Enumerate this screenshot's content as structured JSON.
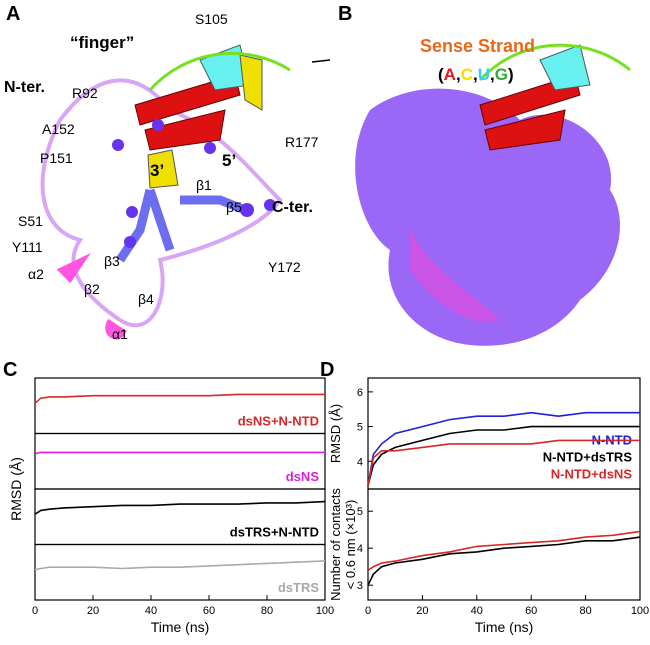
{
  "panels": {
    "A": {
      "label": "A",
      "annotations": [
        "“finger”",
        "S105",
        "N-ter.",
        "R92",
        "A152",
        "P151",
        "3’",
        "5’",
        "S51",
        "Y111",
        "β1",
        "R177",
        "C-ter.",
        "β5",
        "α2",
        "β3",
        "β2",
        "β4",
        "Y172",
        "α1"
      ]
    },
    "B": {
      "label": "B",
      "title": "Sense Strand",
      "open": "(",
      "close": ")",
      "separator": ",",
      "letters": [
        {
          "text": "A",
          "color": "#e31a1c"
        },
        {
          "text": "C",
          "color": "#f0e000"
        },
        {
          "text": "U",
          "color": "#33ccff"
        },
        {
          "text": "G",
          "color": "#33aa33"
        }
      ]
    }
  },
  "chart_data": [
    {
      "type": "line",
      "panel_label": "C",
      "xlabel": "Time (ns)",
      "ylabel": "RMSD (Å)",
      "xlim": [
        0,
        100
      ],
      "xticks": [
        0,
        20,
        40,
        60,
        80,
        100
      ],
      "legend": "lower right",
      "x": [
        0,
        2,
        5,
        10,
        20,
        30,
        40,
        50,
        60,
        70,
        80,
        90,
        100
      ],
      "subplots": [
        {
          "ylim": [
            0,
            2.2
          ],
          "series": [
            {
              "name": "dsNS+N-NTD",
              "color": "#d62728",
              "values": [
                1.2,
                1.4,
                1.45,
                1.45,
                1.5,
                1.5,
                1.5,
                1.5,
                1.5,
                1.55,
                1.55,
                1.55,
                1.55
              ]
            }
          ]
        },
        {
          "ylim": [
            0,
            2.2
          ],
          "series": [
            {
              "name": "dsNS",
              "color": "#d81fd8",
              "values": [
                1.4,
                1.45,
                1.45,
                1.45,
                1.45,
                1.45,
                1.45,
                1.45,
                1.45,
                1.45,
                1.45,
                1.45,
                1.45
              ]
            }
          ]
        },
        {
          "ylim": [
            0,
            2.2
          ],
          "series": [
            {
              "name": "dsTRS+N-NTD",
              "color": "#000000",
              "values": [
                1.2,
                1.35,
                1.4,
                1.45,
                1.5,
                1.55,
                1.55,
                1.6,
                1.6,
                1.6,
                1.65,
                1.65,
                1.7
              ]
            }
          ]
        },
        {
          "ylim": [
            0,
            2.2
          ],
          "series": [
            {
              "name": "dsTRS",
              "color": "#aaaaaa",
              "values": [
                1.2,
                1.25,
                1.3,
                1.3,
                1.3,
                1.25,
                1.3,
                1.3,
                1.35,
                1.4,
                1.45,
                1.5,
                1.55
              ]
            }
          ]
        }
      ]
    },
    {
      "type": "line",
      "panel_label": "D",
      "xlabel": "Time (ns)",
      "xlim": [
        0,
        100
      ],
      "xticks": [
        0,
        20,
        40,
        60,
        80,
        100
      ],
      "legend": "right",
      "x": [
        0,
        2,
        5,
        10,
        20,
        30,
        40,
        50,
        60,
        70,
        80,
        90,
        100
      ],
      "subplots": [
        {
          "ylabel": [
            "RMSD (Å)"
          ],
          "ylim": [
            3.2,
            6.4
          ],
          "yticks": [
            4,
            5,
            6
          ],
          "series": [
            {
              "name": "N-NTD",
              "color": "#1f1fe0",
              "values": [
                3.3,
                4.2,
                4.5,
                4.8,
                5.0,
                5.2,
                5.3,
                5.3,
                5.4,
                5.3,
                5.4,
                5.4,
                5.4
              ]
            },
            {
              "name": "N-NTD+dsTRS",
              "color": "#000000",
              "values": [
                3.3,
                3.9,
                4.2,
                4.4,
                4.6,
                4.8,
                4.9,
                4.9,
                5.0,
                5.0,
                5.0,
                5.0,
                5.0
              ]
            },
            {
              "name": "N-NTD+dsNS",
              "color": "#d62728",
              "values": [
                3.3,
                4.1,
                4.3,
                4.3,
                4.4,
                4.5,
                4.5,
                4.5,
                4.5,
                4.6,
                4.6,
                4.6,
                4.6
              ]
            }
          ]
        },
        {
          "ylabel": [
            "Number of contacts",
            "< 0.6 nm (×10³)"
          ],
          "ylim": [
            2.6,
            5.6
          ],
          "yticks": [
            3,
            4,
            5
          ],
          "series": [
            {
              "name": "N-NTD+dsTRS",
              "color": "#000000",
              "values": [
                3.0,
                3.3,
                3.5,
                3.6,
                3.7,
                3.85,
                3.9,
                4.0,
                4.05,
                4.1,
                4.2,
                4.2,
                4.3
              ]
            },
            {
              "name": "N-NTD+dsNS",
              "color": "#d62728",
              "values": [
                3.4,
                3.5,
                3.6,
                3.65,
                3.8,
                3.9,
                4.05,
                4.1,
                4.15,
                4.2,
                4.3,
                4.35,
                4.45
              ]
            }
          ]
        }
      ]
    }
  ]
}
